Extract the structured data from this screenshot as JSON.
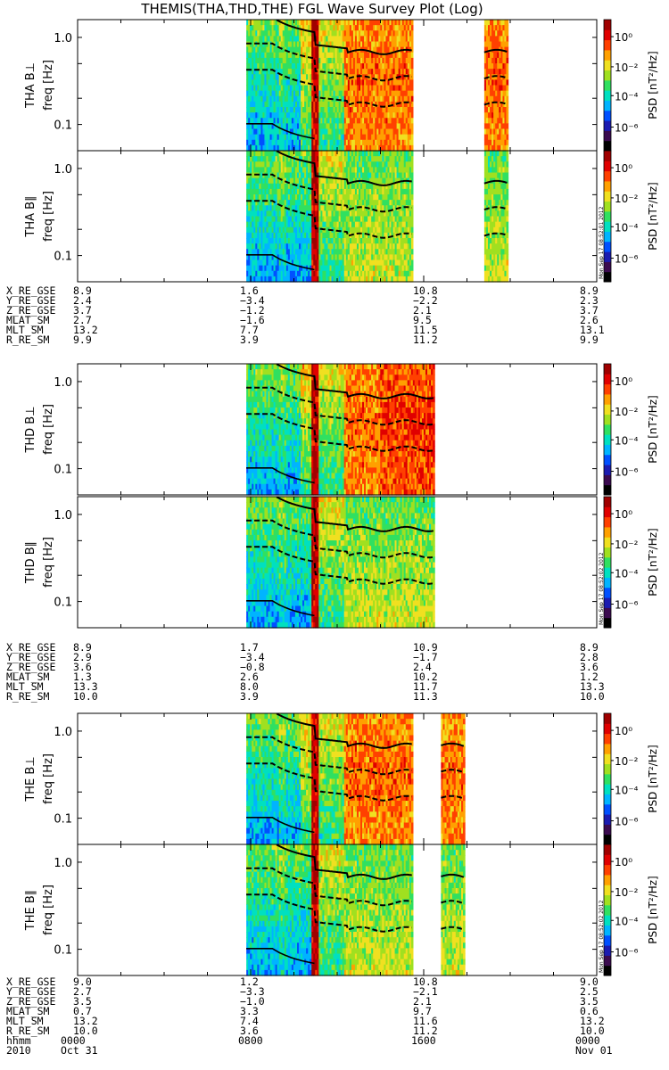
{
  "title": "THEMIS(THA,THD,THE) FGL Wave Survey Plot (Log)",
  "stamp": "Mon Sep 17 08:52:01 2012",
  "colorbar": {
    "label": "PSD [nT²/Hz]",
    "ticks": [
      "10⁰",
      "10⁻²",
      "10⁻⁴",
      "10⁻⁶"
    ]
  },
  "yticks": [
    "1.0",
    "0.1"
  ],
  "chart_data": {
    "type": "heatmap",
    "title": "THEMIS(THA,THD,THE) FGL Wave Survey Plot (Log)",
    "x_axis": {
      "label_rows": [
        {
          "name": "hhmm",
          "ticks": [
            "0000",
            "0800",
            "1600",
            "0000"
          ]
        },
        {
          "name": "2010",
          "ticks": [
            "Oct 31",
            "",
            "",
            "Nov 01"
          ]
        }
      ],
      "range_hours": [
        0,
        24
      ]
    },
    "y_axis": {
      "label": "freq [Hz]",
      "scale": "log",
      "range_hz": [
        0.05,
        1.6
      ],
      "ticks": [
        1.0,
        0.1
      ]
    },
    "z_axis": {
      "label": "PSD [nT²/Hz]",
      "scale": "log",
      "range": [
        1e-07,
        10
      ],
      "ticks": [
        "10⁰",
        "10⁻²",
        "10⁻⁴",
        "10⁻⁶"
      ]
    },
    "colors": [
      "#000000",
      "#3b0a4f",
      "#1b1bb0",
      "#0050ff",
      "#00b4ff",
      "#00e0c0",
      "#30e060",
      "#a0e020",
      "#f0e020",
      "#ffa000",
      "#ff4000",
      "#e00000",
      "#a00000"
    ],
    "panels": [
      {
        "probe": "THA",
        "label": "THA B⊥",
        "component": "perp",
        "data_hours": [
          [
            7.8,
            15.5
          ],
          [
            18.8,
            19.9
          ]
        ],
        "stamp": "Mon Sep 17 08:52:01 2012"
      },
      {
        "probe": "THA",
        "label": "THA B∥",
        "component": "par",
        "data_hours": [
          [
            7.8,
            15.5
          ],
          [
            18.8,
            19.9
          ]
        ],
        "stamp": "Mon Sep 17 08:52:01 2012"
      },
      {
        "probe": "THD",
        "label": "THD B⊥",
        "component": "perp",
        "data_hours": [
          [
            7.8,
            16.5
          ]
        ],
        "stamp": "Mon Sep 17 08:52:02 2012"
      },
      {
        "probe": "THD",
        "label": "THD B∥",
        "component": "par",
        "data_hours": [
          [
            7.8,
            16.5
          ]
        ],
        "stamp": "Mon Sep 17 08:52:02 2012"
      },
      {
        "probe": "THE",
        "label": "THE B⊥",
        "component": "perp",
        "data_hours": [
          [
            7.8,
            15.5
          ],
          [
            16.8,
            17.9
          ]
        ],
        "stamp": "Mon Sep 17 08:52:02 2012"
      },
      {
        "probe": "THE",
        "label": "THE B∥",
        "component": "par",
        "data_hours": [
          [
            7.8,
            15.5
          ],
          [
            16.8,
            17.9
          ]
        ],
        "stamp": "Mon Sep 17 08:52:02 2012"
      }
    ],
    "ephemeris": [
      {
        "probe": "THA",
        "rows": [
          {
            "name": "X_RE_GSE",
            "values": [
              "8.9",
              "1.6",
              "10.8",
              "8.9"
            ]
          },
          {
            "name": "Y_RE_GSE",
            "values": [
              "2.4",
              "−3.4",
              "−2.2",
              "2.3"
            ]
          },
          {
            "name": "Z_RE_GSE",
            "values": [
              "3.7",
              "−1.2",
              "2.1",
              "3.7"
            ]
          },
          {
            "name": "MLAT_SM",
            "values": [
              "2.7",
              "−1.6",
              "9.5",
              "2.6"
            ]
          },
          {
            "name": "MLT_SM",
            "values": [
              "13.2",
              "7.7",
              "11.5",
              "13.1"
            ]
          },
          {
            "name": "R_RE_SM",
            "values": [
              "9.9",
              "3.9",
              "11.2",
              "9.9"
            ]
          }
        ]
      },
      {
        "probe": "THD",
        "rows": [
          {
            "name": "X_RE_GSE",
            "values": [
              "8.9",
              "1.7",
              "10.9",
              "8.9"
            ]
          },
          {
            "name": "Y_RE_GSE",
            "values": [
              "2.9",
              "−3.4",
              "−1.7",
              "2.8"
            ]
          },
          {
            "name": "Z_RE_GSE",
            "values": [
              "3.6",
              "−0.8",
              "2.4",
              "3.6"
            ]
          },
          {
            "name": "MLAT_SM",
            "values": [
              "1.3",
              "2.6",
              "10.2",
              "1.2"
            ]
          },
          {
            "name": "MLT_SM",
            "values": [
              "13.3",
              "8.0",
              "11.7",
              "13.3"
            ]
          },
          {
            "name": "R_RE_SM",
            "values": [
              "10.0",
              "3.9",
              "11.3",
              "10.0"
            ]
          }
        ]
      },
      {
        "probe": "THE",
        "rows": [
          {
            "name": "X_RE_GSE",
            "values": [
              "9.0",
              "1.2",
              "10.8",
              "9.0"
            ]
          },
          {
            "name": "Y_RE_GSE",
            "values": [
              "2.7",
              "−3.3",
              "−2.1",
              "2.5"
            ]
          },
          {
            "name": "Z_RE_GSE",
            "values": [
              "3.5",
              "−1.0",
              "2.1",
              "3.5"
            ]
          },
          {
            "name": "MLAT_SM",
            "values": [
              "0.7",
              "3.3",
              "9.7",
              "0.6"
            ]
          },
          {
            "name": "MLT_SM",
            "values": [
              "13.2",
              "7.4",
              "11.6",
              "13.2"
            ]
          },
          {
            "name": "R_RE_SM",
            "values": [
              "10.0",
              "3.6",
              "11.2",
              "10.0"
            ]
          }
        ]
      }
    ]
  }
}
